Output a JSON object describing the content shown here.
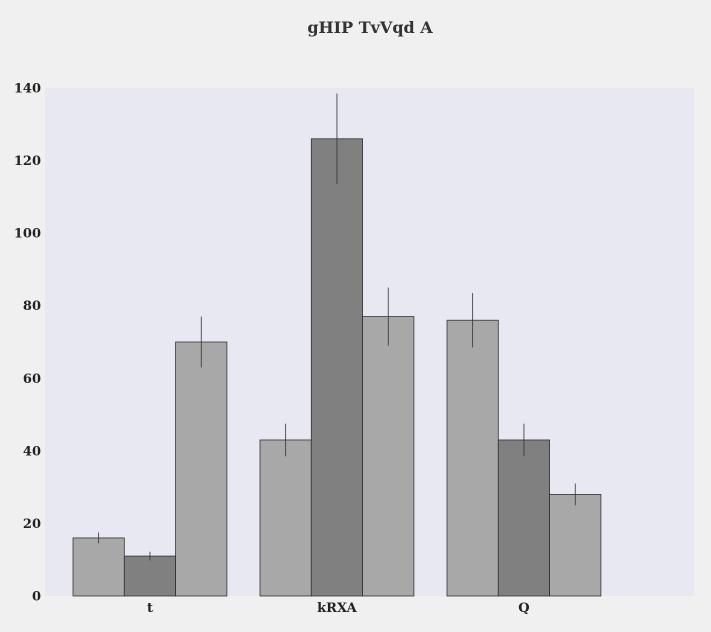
{
  "chart_data": {
    "type": "bar",
    "title": "gHIP TvVqd  A",
    "xlabel": "",
    "ylabel": "",
    "categories": [
      "t",
      "kRXA",
      "Q"
    ],
    "yticks": [
      "0",
      "20",
      "40",
      "60",
      "80",
      "100",
      "120",
      "140"
    ],
    "ylim": [
      0,
      140
    ],
    "grid": false,
    "series": [
      {
        "values": [
          16,
          43,
          76
        ],
        "errors": [
          1.5,
          4.5,
          7.5
        ],
        "color": "#a8a8a8"
      },
      {
        "values": [
          11,
          126,
          43
        ],
        "errors": [
          1.2,
          12.5,
          4.5
        ],
        "color": "#808080"
      },
      {
        "values": [
          70,
          77,
          28
        ],
        "errors": [
          7,
          8,
          3
        ],
        "color": "#a8a8a8"
      }
    ],
    "plot_background": "#e8e8f2",
    "page_background": "#f0f0f0"
  }
}
